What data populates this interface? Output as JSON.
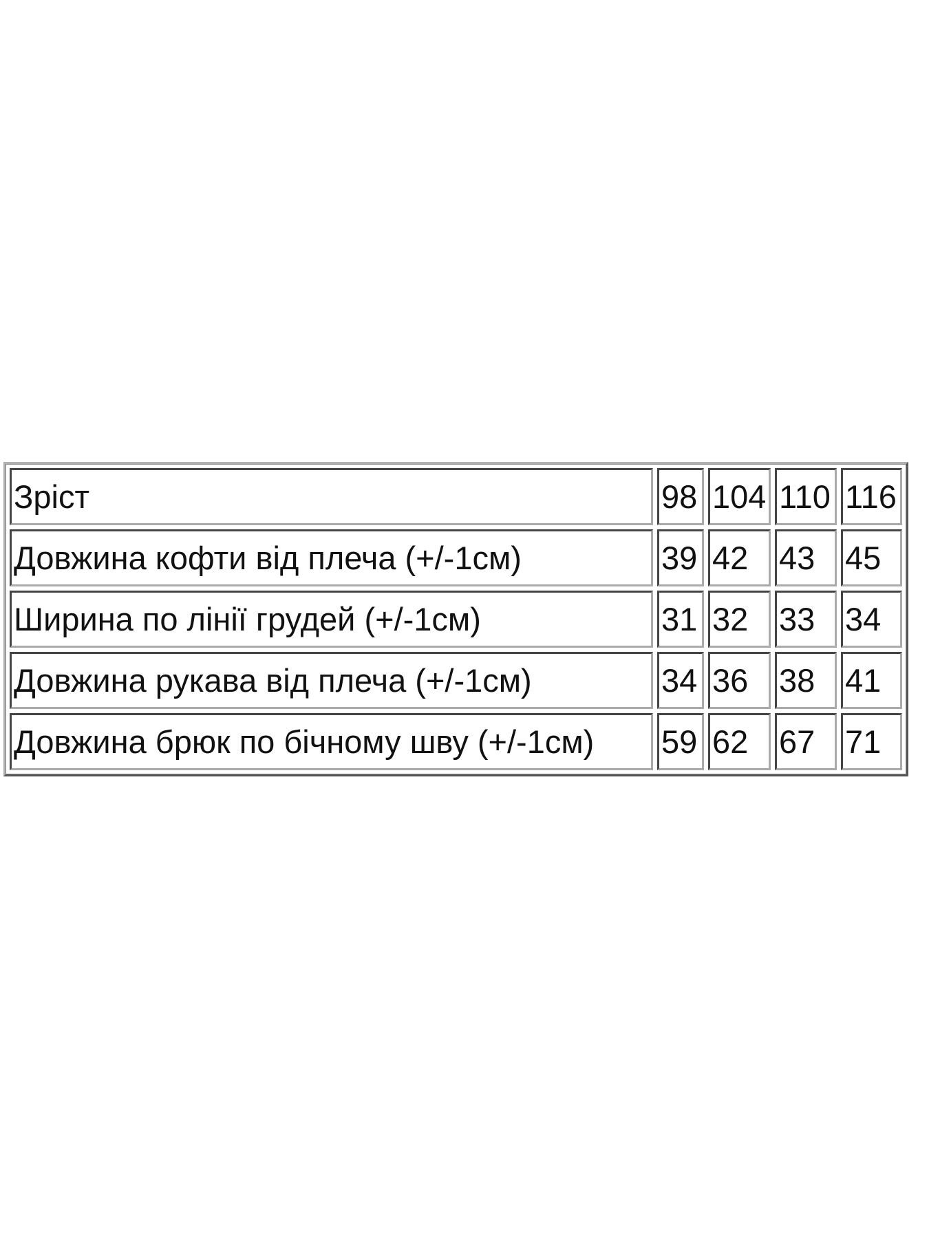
{
  "size_table": {
    "rows": [
      {
        "label": "Зріст",
        "values": [
          "98",
          "104",
          "110",
          "116"
        ]
      },
      {
        "label": "Довжина кофти від плеча (+/-1см)",
        "values": [
          "39",
          "42",
          "43",
          "45"
        ]
      },
      {
        "label": "Ширина по лінії грудей (+/-1см)",
        "values": [
          "31",
          "32",
          "33",
          "34"
        ]
      },
      {
        "label": "Довжина рукава від плеча (+/-1см)",
        "values": [
          "34",
          "36",
          "38",
          "41"
        ]
      },
      {
        "label": "Довжина брюк по бічному шву (+/-1см)",
        "values": [
          "59",
          "62",
          "67",
          "71"
        ]
      }
    ]
  }
}
